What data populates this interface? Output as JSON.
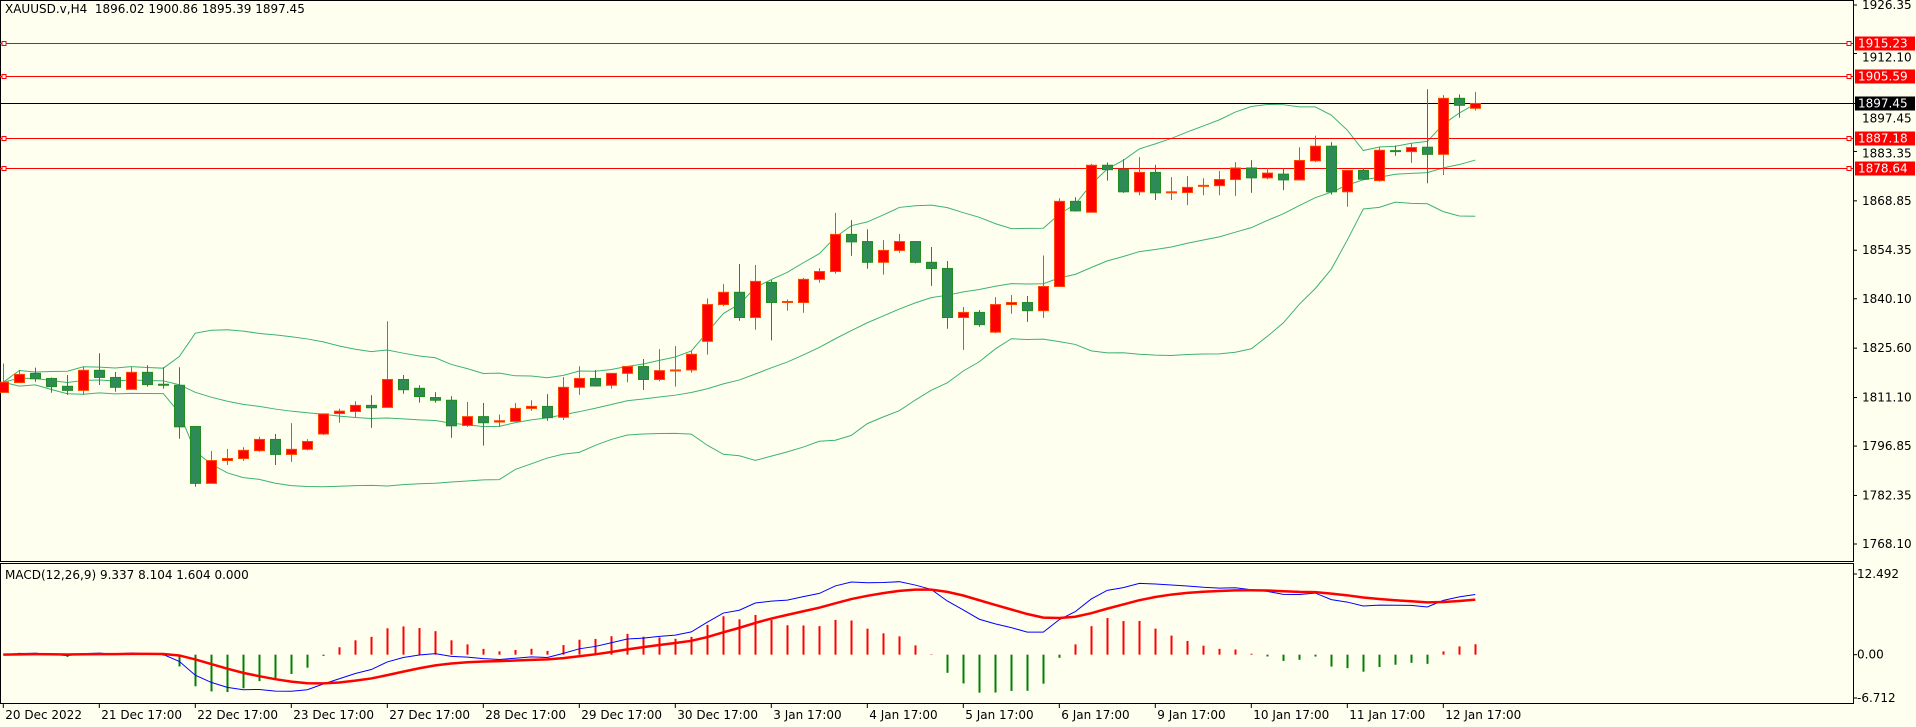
{
  "header": {
    "symbol": "XAUUSD.v,H4",
    "ohlc": "1896.02 1900.86 1895.39 1897.45"
  },
  "macd_header": "MACD(12,26,9) 9.337 8.104 1.604 0.000",
  "colors": {
    "background": "#fffff0",
    "bull_body": "#ff0000",
    "bull_border": "#ff4500",
    "bear_body": "#2e8b57",
    "bear_border": "#228b22",
    "bands": "#3cb371",
    "macd_main": "#0000ff",
    "macd_signal": "#ff0000",
    "level_line": "#ff0000",
    "bid_line": "#000000"
  },
  "chart_data": [
    {
      "type": "candlestick",
      "title": "XAUUSD.v,H4",
      "ylim": [
        1768.1,
        1926.35
      ],
      "price_ticks": [
        "1926.35",
        "1912.10",
        "1897.45",
        "1883.35",
        "1868.85",
        "1854.35",
        "1840.10",
        "1825.60",
        "1811.10",
        "1796.85",
        "1782.35",
        "1768.10"
      ],
      "x_labels": [
        "20 Dec 2022",
        "21 Dec 17:00",
        "22 Dec 17:00",
        "23 Dec 17:00",
        "27 Dec 17:00",
        "28 Dec 17:00",
        "29 Dec 17:00",
        "30 Dec 17:00",
        "3 Jan 17:00",
        "4 Jan 17:00",
        "5 Jan 17:00",
        "6 Jan 17:00",
        "9 Jan 17:00",
        "10 Jan 17:00",
        "11 Jan 17:00",
        "12 Jan 17:00"
      ],
      "x_label_every_bars": 6,
      "ohlc": [
        [
          1812.6,
          1821.1,
          1812.6,
          1815.6
        ],
        [
          1815.5,
          1819.2,
          1815.5,
          1817.9
        ],
        [
          1818.2,
          1819.9,
          1815.7,
          1816.6
        ],
        [
          1816.7,
          1817.0,
          1812.5,
          1814.3
        ],
        [
          1814.4,
          1817.7,
          1811.9,
          1813.2
        ],
        [
          1813.2,
          1820.1,
          1811.9,
          1819.1
        ],
        [
          1819.1,
          1824.1,
          1814.8,
          1817.0
        ],
        [
          1817.0,
          1818.6,
          1812.8,
          1814.1
        ],
        [
          1813.5,
          1820.0,
          1813.5,
          1818.5
        ],
        [
          1818.5,
          1820.6,
          1814.3,
          1814.9
        ],
        [
          1815.0,
          1820.0,
          1813.7,
          1814.7
        ],
        [
          1814.7,
          1820.0,
          1799.0,
          1802.5
        ],
        [
          1802.6,
          1802.6,
          1784.9,
          1785.9
        ],
        [
          1785.9,
          1795.4,
          1785.9,
          1792.6
        ],
        [
          1792.6,
          1796.0,
          1791.3,
          1793.2
        ],
        [
          1793.2,
          1796.5,
          1792.5,
          1795.6
        ],
        [
          1795.5,
          1799.6,
          1795.2,
          1798.8
        ],
        [
          1798.8,
          1800.4,
          1791.3,
          1794.4
        ],
        [
          1794.4,
          1803.6,
          1792.2,
          1795.9
        ],
        [
          1795.9,
          1798.9,
          1795.6,
          1798.2
        ],
        [
          1800.4,
          1806.4,
          1800.1,
          1806.3
        ],
        [
          1806.4,
          1807.8,
          1803.7,
          1807.1
        ],
        [
          1807.0,
          1810.0,
          1805.3,
          1808.8
        ],
        [
          1808.8,
          1811.8,
          1802.2,
          1808.1
        ],
        [
          1808.2,
          1833.5,
          1808.2,
          1816.4
        ],
        [
          1816.4,
          1817.7,
          1812.2,
          1813.4
        ],
        [
          1813.8,
          1814.7,
          1809.6,
          1811.4
        ],
        [
          1811.1,
          1812.7,
          1809.6,
          1810.3
        ],
        [
          1810.3,
          1811.5,
          1799.3,
          1802.8
        ],
        [
          1802.9,
          1809.8,
          1802.5,
          1805.5
        ],
        [
          1805.5,
          1809.5,
          1797.0,
          1803.7
        ],
        [
          1803.9,
          1806.1,
          1802.5,
          1804.3
        ],
        [
          1804.1,
          1809.5,
          1804.1,
          1807.9
        ],
        [
          1807.9,
          1810.3,
          1807.2,
          1808.5
        ],
        [
          1808.5,
          1812.1,
          1804.3,
          1805.2
        ],
        [
          1805.3,
          1817.1,
          1804.5,
          1814.1
        ],
        [
          1814.1,
          1820.3,
          1811.9,
          1816.7
        ],
        [
          1816.7,
          1819.2,
          1814.3,
          1814.5
        ],
        [
          1814.7,
          1818.2,
          1813.7,
          1818.2
        ],
        [
          1818.2,
          1820.2,
          1815.6,
          1820.2
        ],
        [
          1820.2,
          1822.4,
          1813.3,
          1816.4
        ],
        [
          1816.4,
          1825.3,
          1815.9,
          1819.0
        ],
        [
          1819.0,
          1826.2,
          1814.3,
          1819.2
        ],
        [
          1819.2,
          1824.8,
          1818.4,
          1823.8
        ],
        [
          1827.6,
          1840.2,
          1823.7,
          1838.4
        ],
        [
          1838.4,
          1844.4,
          1837.9,
          1842.0
        ],
        [
          1842.0,
          1850.3,
          1833.6,
          1834.6
        ],
        [
          1834.6,
          1850.0,
          1831.0,
          1845.2
        ],
        [
          1844.9,
          1845.6,
          1827.9,
          1839.0
        ],
        [
          1839.1,
          1839.9,
          1836.6,
          1839.3
        ],
        [
          1839.0,
          1846.2,
          1836.0,
          1845.8
        ],
        [
          1845.8,
          1849.1,
          1844.8,
          1848.1
        ],
        [
          1848.1,
          1865.3,
          1847.5,
          1859.0
        ],
        [
          1859.0,
          1863.2,
          1852.7,
          1856.8
        ],
        [
          1856.9,
          1860.5,
          1848.9,
          1850.8
        ],
        [
          1850.8,
          1857.3,
          1847.2,
          1854.3
        ],
        [
          1854.3,
          1859.1,
          1853.6,
          1856.9
        ],
        [
          1856.9,
          1856.9,
          1850.5,
          1850.8
        ],
        [
          1850.8,
          1855.3,
          1843.9,
          1849.0
        ],
        [
          1849.0,
          1851.2,
          1831.3,
          1834.6
        ],
        [
          1834.6,
          1837.7,
          1825.1,
          1836.1
        ],
        [
          1836.1,
          1836.8,
          1831.9,
          1832.5
        ],
        [
          1830.3,
          1840.6,
          1830.0,
          1838.4
        ],
        [
          1838.4,
          1841.2,
          1835.7,
          1839.0
        ],
        [
          1839.0,
          1840.9,
          1833.3,
          1836.6
        ],
        [
          1836.6,
          1852.8,
          1834.5,
          1843.7
        ],
        [
          1843.7,
          1869.6,
          1843.7,
          1868.7
        ],
        [
          1868.7,
          1869.9,
          1865.7,
          1865.9
        ],
        [
          1865.5,
          1879.7,
          1865.5,
          1879.3
        ],
        [
          1879.3,
          1880.1,
          1874.8,
          1878.0
        ],
        [
          1878.1,
          1881.1,
          1871.2,
          1871.5
        ],
        [
          1871.5,
          1881.7,
          1870.5,
          1877.2
        ],
        [
          1877.2,
          1879.4,
          1869.1,
          1871.2
        ],
        [
          1871.3,
          1875.8,
          1869.1,
          1871.5
        ],
        [
          1871.3,
          1876.1,
          1867.6,
          1872.8
        ],
        [
          1873.2,
          1875.5,
          1870.5,
          1873.4
        ],
        [
          1873.3,
          1877.6,
          1870.5,
          1875.1
        ],
        [
          1875.1,
          1880.2,
          1870.3,
          1878.5
        ],
        [
          1878.5,
          1880.8,
          1871.2,
          1875.6
        ],
        [
          1875.6,
          1878.5,
          1875.2,
          1877.0
        ],
        [
          1876.7,
          1878.5,
          1872.0,
          1875.0
        ],
        [
          1875.0,
          1884.6,
          1874.8,
          1880.7
        ],
        [
          1880.6,
          1888.0,
          1880.2,
          1884.9
        ],
        [
          1884.9,
          1886.1,
          1870.7,
          1871.5
        ],
        [
          1871.5,
          1877.8,
          1867.1,
          1877.8
        ],
        [
          1877.8,
          1878.5,
          1875.0,
          1875.2
        ],
        [
          1874.8,
          1884.8,
          1874.5,
          1883.7
        ],
        [
          1883.6,
          1885.1,
          1882.1,
          1883.4
        ],
        [
          1883.3,
          1885.7,
          1880.0,
          1884.5
        ],
        [
          1884.6,
          1901.6,
          1874.0,
          1882.5
        ],
        [
          1882.5,
          1899.9,
          1876.4,
          1898.95
        ],
        [
          1898.95,
          1900.1,
          1893.3,
          1896.9
        ],
        [
          1896.02,
          1900.86,
          1895.39,
          1897.45
        ]
      ],
      "bollinger": {
        "period": 20,
        "deviations": 2
      },
      "levels": [
        {
          "price": 1915.23,
          "label": "1915.23"
        },
        {
          "price": 1905.59,
          "label": "1905.59"
        },
        {
          "price": 1887.18,
          "label": "1887.18"
        },
        {
          "price": 1878.64,
          "label": "1878.64"
        }
      ],
      "bid": {
        "price": 1897.45,
        "label": "1897.45"
      }
    },
    {
      "type": "line+histogram",
      "title": "MACD(12,26,9)",
      "params": {
        "fast": 12,
        "slow": 26,
        "signal": 9
      },
      "ylim": [
        -6.712,
        12.492
      ],
      "ticks": [
        "12.492",
        "0.00",
        "-6.712"
      ],
      "values": {
        "main": 9.337,
        "signal": 8.104,
        "hist": 1.604,
        "extra": 0.0
      }
    }
  ]
}
